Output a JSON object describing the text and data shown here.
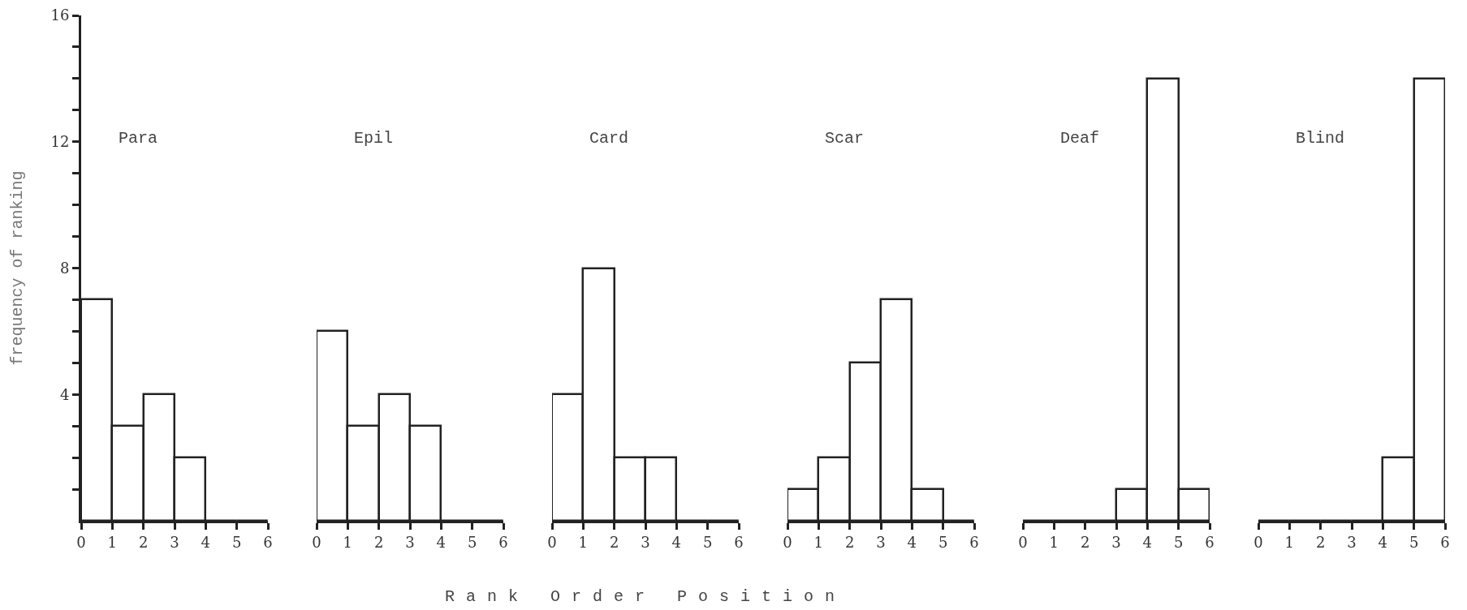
{
  "chart_data": [
    {
      "type": "histogram",
      "title": "Para",
      "ylabel": "frequency of ranking",
      "bins": [
        0,
        1,
        2,
        3,
        4,
        5,
        6
      ],
      "values": [
        7,
        3,
        4,
        2,
        0,
        0
      ],
      "color": "#222222",
      "xlim": [
        0,
        6
      ],
      "xticks": [
        0,
        1,
        2,
        3,
        4,
        5,
        6
      ],
      "ylim": [
        0,
        16
      ],
      "yticks": [
        {
          "value": 1,
          "label": null
        },
        {
          "value": 2,
          "label": null
        },
        {
          "value": 3,
          "label": null
        },
        4,
        {
          "value": 5,
          "label": null
        },
        {
          "value": 6,
          "label": null
        },
        {
          "value": 7,
          "label": null
        },
        8,
        {
          "value": 9,
          "label": null
        },
        {
          "value": 10,
          "label": null
        },
        {
          "value": 11,
          "label": null
        },
        12,
        {
          "value": 13,
          "label": null
        },
        {
          "value": 14,
          "label": null
        },
        {
          "value": 15,
          "label": null
        },
        16
      ]
    },
    {
      "type": "histogram",
      "title": "Epil",
      "bins": [
        0,
        1,
        2,
        3,
        4,
        5,
        6
      ],
      "values": [
        6,
        3,
        4,
        3,
        0,
        0
      ],
      "color": "#222222",
      "xlim": [
        0,
        6
      ],
      "xticks": [
        0,
        1,
        2,
        3,
        4,
        5,
        6
      ],
      "ylim": [
        0,
        16
      ],
      "tick_labels": "x"
    },
    {
      "type": "histogram",
      "title": "Card",
      "xlabel": "Rank Order Position",
      "bins": [
        0,
        1,
        2,
        3,
        4,
        5,
        6
      ],
      "values": [
        4,
        8,
        2,
        2,
        0,
        0
      ],
      "color": "#222222",
      "xlim": [
        0,
        6
      ],
      "xticks": [
        0,
        1,
        2,
        3,
        4,
        5,
        6
      ],
      "ylim": [
        0,
        16
      ],
      "tick_labels": "x"
    },
    {
      "type": "histogram",
      "title": "Scar",
      "bins": [
        0,
        1,
        2,
        3,
        4,
        5,
        6
      ],
      "values": [
        1,
        2,
        5,
        7,
        1,
        0
      ],
      "color": "#222222",
      "xlim": [
        0,
        6
      ],
      "xticks": [
        0,
        1,
        2,
        3,
        4,
        5,
        6
      ],
      "ylim": [
        0,
        16
      ],
      "tick_labels": "x"
    },
    {
      "type": "histogram",
      "title": "Deaf",
      "bins": [
        0,
        1,
        2,
        3,
        4,
        5,
        6
      ],
      "values": [
        0,
        0,
        0,
        1,
        14,
        1
      ],
      "color": "#222222",
      "xlim": [
        0,
        6
      ],
      "xticks": [
        0,
        1,
        2,
        3,
        4,
        5,
        6
      ],
      "ylim": [
        0,
        16
      ],
      "tick_labels": "x"
    },
    {
      "type": "histogram",
      "title": "Blind",
      "bins": [
        0,
        1,
        2,
        3,
        4,
        5,
        6
      ],
      "values": [
        0,
        0,
        0,
        0,
        2,
        14
      ],
      "color": "#222222",
      "xlim": [
        0,
        6
      ],
      "xticks": [
        0,
        1,
        2,
        3,
        4,
        5,
        6
      ],
      "ylim": [
        0,
        16
      ],
      "tick_labels": "x"
    }
  ]
}
